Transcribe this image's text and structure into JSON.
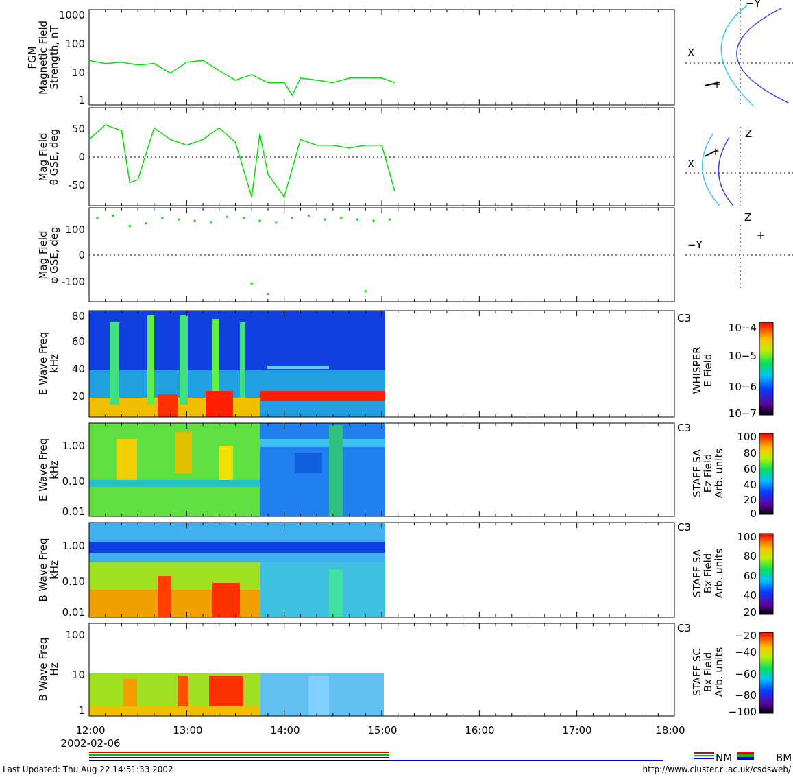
{
  "chart_data": [
    {
      "type": "line",
      "ylabel_lines": [
        "FGM",
        "Magnetic Field",
        "Strength, nT"
      ],
      "yscale": "log",
      "ylim": [
        1,
        1000
      ],
      "yticks": [
        "1",
        "10",
        "100",
        "1000"
      ],
      "color": "#00e000",
      "series": [
        {
          "x": [
            "12:00",
            "12:10",
            "12:20",
            "12:30",
            "12:40",
            "12:50",
            "13:00",
            "13:10",
            "13:20",
            "13:30",
            "13:40",
            "13:50",
            "14:00",
            "14:05",
            "14:10",
            "14:20",
            "14:30",
            "14:40",
            "14:50",
            "15:00",
            "15:08"
          ],
          "values": [
            25,
            20,
            22,
            18,
            20,
            10,
            22,
            25,
            12,
            6,
            9,
            5,
            5,
            2,
            7,
            6,
            5,
            7,
            7,
            7,
            5
          ]
        }
      ]
    },
    {
      "type": "line",
      "ylabel_lines": [
        "Mag  Field",
        "θ GSE, deg"
      ],
      "ylim": [
        -85,
        85
      ],
      "yticks": [
        "-50",
        "0",
        "50"
      ],
      "color": "#00e000",
      "series": [
        {
          "x": [
            "12:00",
            "12:10",
            "12:20",
            "12:25",
            "12:30",
            "12:40",
            "12:50",
            "13:00",
            "13:10",
            "13:20",
            "13:30",
            "13:40",
            "13:45",
            "13:50",
            "14:00",
            "14:10",
            "14:20",
            "14:30",
            "14:40",
            "14:50",
            "15:00",
            "15:08"
          ],
          "values": [
            30,
            55,
            45,
            -45,
            -40,
            50,
            30,
            20,
            30,
            50,
            25,
            -70,
            40,
            -30,
            -70,
            30,
            20,
            20,
            15,
            20,
            20,
            -60
          ]
        }
      ]
    },
    {
      "type": "scatter",
      "ylabel_lines": [
        "Mag  Field",
        "φ GSE, deg"
      ],
      "ylim": [
        -180,
        180
      ],
      "yticks": [
        "-100",
        "0",
        "100"
      ],
      "color": "#00e000",
      "series": [
        {
          "x": [
            "12:05",
            "12:15",
            "12:25",
            "12:35",
            "12:45",
            "12:55",
            "13:05",
            "13:15",
            "13:25",
            "13:35",
            "13:45",
            "13:55",
            "14:05",
            "14:15",
            "14:25",
            "14:35",
            "14:45",
            "14:55",
            "15:05",
            "13:40",
            "13:50",
            "14:50"
          ],
          "values": [
            140,
            150,
            110,
            120,
            140,
            135,
            130,
            125,
            145,
            140,
            130,
            125,
            140,
            150,
            135,
            140,
            135,
            130,
            135,
            -110,
            -150,
            -140
          ]
        }
      ]
    },
    {
      "type": "heatmap",
      "ylabel_lines": [
        "E Wave Freq",
        "kHz"
      ],
      "yticks": [
        "20",
        "40",
        "60",
        "80"
      ],
      "ylim": [
        5,
        83
      ],
      "label": "C3",
      "colorbar": {
        "title_lines": [
          "WHISPER",
          "E Field"
        ],
        "ticks": [
          "10−7",
          "10−6",
          "10−5",
          "10−4"
        ]
      }
    },
    {
      "type": "heatmap",
      "ylabel_lines": [
        "E Wave Freq",
        "kHz"
      ],
      "yscale": "log",
      "yticks": [
        "0.01",
        "0.10",
        "1.00"
      ],
      "label": "C3",
      "colorbar": {
        "title_lines": [
          "STAFF SA",
          "Ez Field",
          "Arb. units"
        ],
        "ticks": [
          "0",
          "20",
          "40",
          "60",
          "80",
          "100"
        ]
      }
    },
    {
      "type": "heatmap",
      "ylabel_lines": [
        "B Wave Freq",
        "kHz"
      ],
      "yscale": "log",
      "yticks": [
        "0.01",
        "0.10",
        "1.00"
      ],
      "label": "C3",
      "colorbar": {
        "title_lines": [
          "STAFF SA",
          "Bx Field",
          "Arb. units"
        ],
        "ticks": [
          "20",
          "40",
          "60",
          "80",
          "100"
        ]
      }
    },
    {
      "type": "heatmap",
      "ylabel_lines": [
        "B Wave Freq",
        "Hz"
      ],
      "yscale": "log",
      "yticks": [
        "1",
        "10",
        "100"
      ],
      "label": "C3",
      "colorbar": {
        "title_lines": [
          "STAFF SC",
          "Bx Field",
          "Arb. units"
        ],
        "ticks": [
          "−100",
          "−80",
          "−60",
          "−40",
          "−20"
        ]
      }
    }
  ],
  "time_axis": {
    "ticks": [
      "12:00",
      "13:00",
      "14:00",
      "15:00",
      "16:00",
      "17:00",
      "18:00"
    ],
    "date": "2002-02-06",
    "data_end": "15:08"
  },
  "orbit_panels": [
    {
      "h_label": "X",
      "v_label": "−Y"
    },
    {
      "h_label": "X",
      "v_label": "Z"
    },
    {
      "h_label": "−Y",
      "v_label": "Z"
    }
  ],
  "mode_legend": {
    "nm": "NM",
    "bm": "BM"
  },
  "footer": {
    "last_updated": "Last Updated:  Thu Aug 22 14:51:33 2002",
    "url": "http://www.cluster.rl.ac.uk/csdsweb/"
  },
  "colors": {
    "line": "#00e000",
    "sw_bow": "#40c0ff",
    "magnetopause": "#4040e0"
  }
}
